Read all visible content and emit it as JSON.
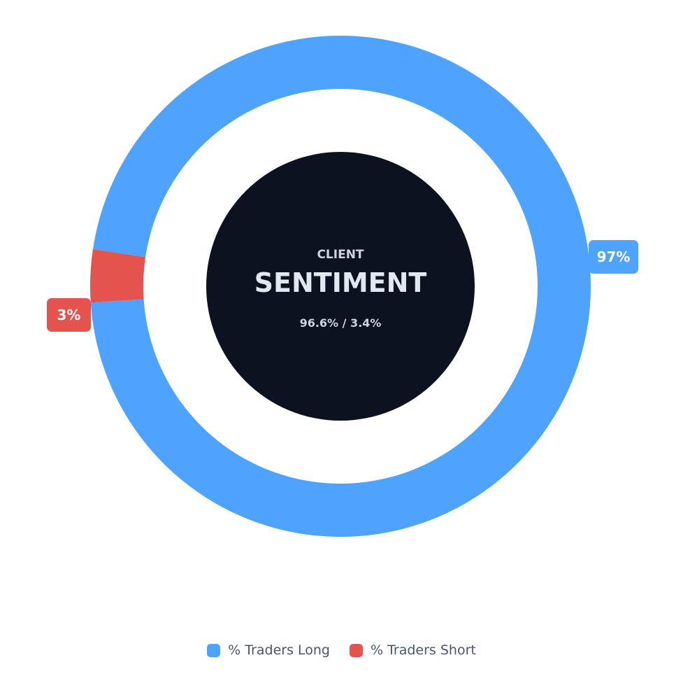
{
  "center": {
    "kicker": "CLIENT",
    "title": "SENTIMENT",
    "ratio": "96.6% / 3.4%"
  },
  "colors": {
    "long": "#4DA3FD",
    "short": "#E5534F",
    "center_fill": "#0D1221",
    "center_text": "#E2E8F0",
    "center_subtext": "#CBD5E1"
  },
  "chart_data": {
    "type": "pie",
    "title": "",
    "categories": [
      "% Traders Long",
      "% Traders Short"
    ],
    "values": [
      96.6,
      3.4
    ],
    "data_labels": [
      "97%",
      "3%"
    ],
    "legend_position": "bottom",
    "grid": false
  },
  "legend": {
    "items": [
      {
        "label": "% Traders Long",
        "color": "#4DA3FD"
      },
      {
        "label": "% Traders Short",
        "color": "#E5534F"
      }
    ]
  }
}
